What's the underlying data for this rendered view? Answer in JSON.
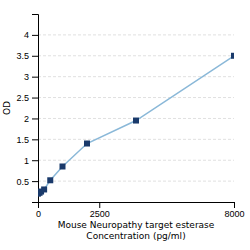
{
  "chart_data": {
    "type": "line",
    "x": [
      0,
      62.5,
      125,
      250,
      500,
      1000,
      2000,
      4000,
      8000
    ],
    "series": [
      {
        "values": [
          0.2,
          0.22,
          0.25,
          0.3,
          0.52,
          0.85,
          1.4,
          1.95,
          3.5
        ],
        "color": "#1a3a6b",
        "marker": "square"
      }
    ],
    "color": "#8ab8d8",
    "xlim": [
      0,
      8000
    ],
    "ylim": [
      0,
      4.5
    ],
    "xticks": [
      0,
      2500,
      8000
    ],
    "yticks": [
      0.5,
      1,
      1.5,
      2,
      2.5,
      3,
      3.5,
      4
    ],
    "ylabel": "OD",
    "xlabel": "Mouse Neuropathy target esterase\nConcentration (pg/ml)",
    "grid": true
  }
}
